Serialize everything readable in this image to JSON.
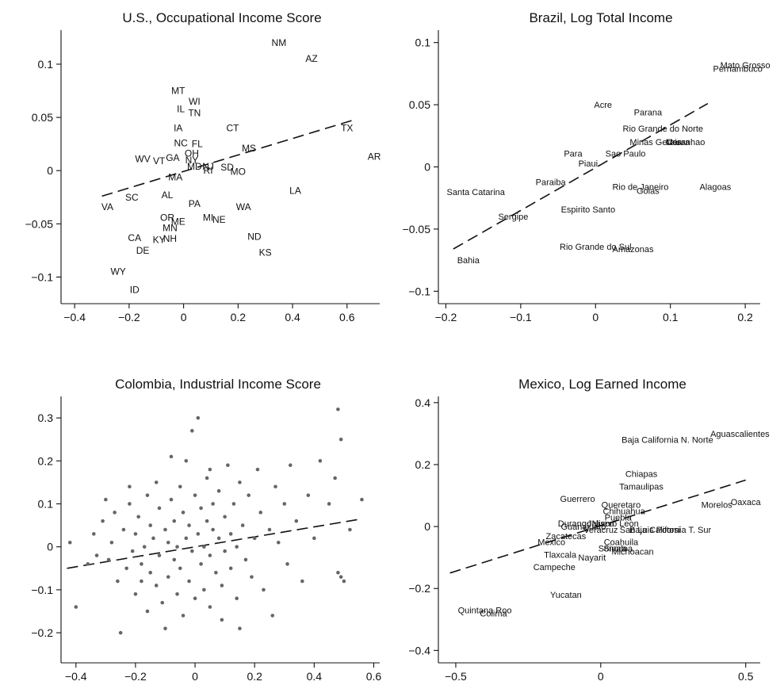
{
  "chart_data": [
    {
      "type": "scatter",
      "title": "U.S., Occupational Income Score",
      "xlim": [
        -0.45,
        0.72
      ],
      "ylim": [
        -0.125,
        0.132
      ],
      "xticks": [
        -0.4,
        -0.2,
        0,
        0.2,
        0.4,
        0.6
      ],
      "xtick_labels": [
        "−0.4",
        "−0.2",
        "0",
        "0.2",
        "0.4",
        "0.6"
      ],
      "yticks": [
        -0.1,
        -0.05,
        0,
        0.05,
        0.1
      ],
      "ytick_labels": [
        "−0.1",
        "−0.05",
        "0",
        "0.05",
        "0.1"
      ],
      "fit_line": [
        [
          -0.3,
          -0.024
        ],
        [
          0.63,
          0.048
        ]
      ],
      "points": [
        {
          "label": "NM",
          "x": 0.35,
          "y": 0.12
        },
        {
          "label": "AZ",
          "x": 0.47,
          "y": 0.105
        },
        {
          "label": "MT",
          "x": -0.02,
          "y": 0.075
        },
        {
          "label": "WI",
          "x": 0.04,
          "y": 0.065
        },
        {
          "label": "IL",
          "x": -0.01,
          "y": 0.058
        },
        {
          "label": "TN",
          "x": 0.04,
          "y": 0.054
        },
        {
          "label": "IA",
          "x": -0.02,
          "y": 0.04
        },
        {
          "label": "CT",
          "x": 0.18,
          "y": 0.04
        },
        {
          "label": "TX",
          "x": 0.6,
          "y": 0.04
        },
        {
          "label": "NC",
          "x": -0.01,
          "y": 0.026
        },
        {
          "label": "FL",
          "x": 0.05,
          "y": 0.025
        },
        {
          "label": "OH",
          "x": 0.03,
          "y": 0.016
        },
        {
          "label": "MS",
          "x": 0.24,
          "y": 0.021
        },
        {
          "label": "AR",
          "x": 0.7,
          "y": 0.013
        },
        {
          "label": "GA",
          "x": -0.04,
          "y": 0.012
        },
        {
          "label": "NY",
          "x": 0.03,
          "y": 0.01
        },
        {
          "label": "WV",
          "x": -0.15,
          "y": 0.011
        },
        {
          "label": "VT",
          "x": -0.09,
          "y": 0.009
        },
        {
          "label": "MD",
          "x": 0.04,
          "y": 0.004
        },
        {
          "label": "NJ",
          "x": 0.09,
          "y": 0.004
        },
        {
          "label": "SD",
          "x": 0.16,
          "y": 0.003
        },
        {
          "label": "RI",
          "x": 0.09,
          "y": 0.0
        },
        {
          "label": "MO",
          "x": 0.2,
          "y": -0.001
        },
        {
          "label": "MA",
          "x": -0.03,
          "y": -0.006
        },
        {
          "label": "LA",
          "x": 0.41,
          "y": -0.019
        },
        {
          "label": "AL",
          "x": -0.06,
          "y": -0.023
        },
        {
          "label": "SC",
          "x": -0.19,
          "y": -0.025
        },
        {
          "label": "VA",
          "x": -0.28,
          "y": -0.034
        },
        {
          "label": "PA",
          "x": 0.04,
          "y": -0.031
        },
        {
          "label": "WA",
          "x": 0.22,
          "y": -0.034
        },
        {
          "label": "OR",
          "x": -0.06,
          "y": -0.044
        },
        {
          "label": "ME",
          "x": -0.02,
          "y": -0.048
        },
        {
          "label": "MI",
          "x": 0.09,
          "y": -0.044
        },
        {
          "label": "NE",
          "x": 0.13,
          "y": -0.046
        },
        {
          "label": "MN",
          "x": -0.05,
          "y": -0.054
        },
        {
          "label": "CA",
          "x": -0.18,
          "y": -0.063
        },
        {
          "label": "KY",
          "x": -0.09,
          "y": -0.065
        },
        {
          "label": "NH",
          "x": -0.05,
          "y": -0.064
        },
        {
          "label": "ND",
          "x": 0.26,
          "y": -0.062
        },
        {
          "label": "DE",
          "x": -0.15,
          "y": -0.075
        },
        {
          "label": "KS",
          "x": 0.3,
          "y": -0.077
        },
        {
          "label": "WY",
          "x": -0.24,
          "y": -0.095
        },
        {
          "label": "ID",
          "x": -0.18,
          "y": -0.112
        }
      ]
    },
    {
      "type": "scatter",
      "title": "Brazil, Log Total Income",
      "xlim": [
        -0.21,
        0.22
      ],
      "ylim": [
        -0.11,
        0.11
      ],
      "xticks": [
        -0.2,
        -0.1,
        0,
        0.1,
        0.2
      ],
      "xtick_labels": [
        "−0.2",
        "−0.1",
        "0",
        "0.1",
        "0.2"
      ],
      "yticks": [
        -0.1,
        -0.05,
        0,
        0.05,
        0.1
      ],
      "ytick_labels": [
        "−0.1",
        "−0.05",
        "0",
        "0.05",
        "0.1"
      ],
      "fit_line": [
        [
          -0.19,
          -0.066
        ],
        [
          0.15,
          0.051
        ]
      ],
      "points": [
        {
          "label": "Mato Grosso",
          "x": 0.2,
          "y": 0.082
        },
        {
          "label": "Pernambuco",
          "x": 0.19,
          "y": 0.079
        },
        {
          "label": "Acre",
          "x": 0.01,
          "y": 0.05
        },
        {
          "label": "Parana",
          "x": 0.07,
          "y": 0.044
        },
        {
          "label": "Rio Grande do Norte",
          "x": 0.09,
          "y": 0.031
        },
        {
          "label": "Minas Gerais",
          "x": 0.08,
          "y": 0.02
        },
        {
          "label": "Maranhao",
          "x": 0.12,
          "y": 0.02
        },
        {
          "label": "Ceara",
          "x": 0.11,
          "y": 0.02
        },
        {
          "label": "Para",
          "x": -0.03,
          "y": 0.011
        },
        {
          "label": "Sao Paulo",
          "x": 0.04,
          "y": 0.011
        },
        {
          "label": "Piaui",
          "x": -0.01,
          "y": 0.003
        },
        {
          "label": "Paraiba",
          "x": -0.06,
          "y": -0.012
        },
        {
          "label": "Rio de Janeiro",
          "x": 0.06,
          "y": -0.016
        },
        {
          "label": "Goias",
          "x": 0.07,
          "y": -0.019
        },
        {
          "label": "Alagoas",
          "x": 0.16,
          "y": -0.016
        },
        {
          "label": "Santa Catarina",
          "x": -0.16,
          "y": -0.02
        },
        {
          "label": "Espirito Santo",
          "x": -0.01,
          "y": -0.034
        },
        {
          "label": "Sergipe",
          "x": -0.11,
          "y": -0.04
        },
        {
          "label": "Rio Grande do Sul",
          "x": 0.0,
          "y": -0.064
        },
        {
          "label": "Amazonas",
          "x": 0.05,
          "y": -0.066
        },
        {
          "label": "Bahia",
          "x": -0.17,
          "y": -0.075
        }
      ]
    },
    {
      "type": "scatter",
      "title": "Colombia, Industrial Income Score",
      "xlim": [
        -0.45,
        0.62
      ],
      "ylim": [
        -0.27,
        0.35
      ],
      "xticks": [
        -0.4,
        -0.2,
        0,
        0.2,
        0.4,
        0.6
      ],
      "xtick_labels": [
        "−0.4",
        "−0.2",
        "0",
        "0.2",
        "0.4",
        "0.6"
      ],
      "yticks": [
        -0.2,
        -0.1,
        0,
        0.1,
        0.2,
        0.3
      ],
      "ytick_labels": [
        "−0.2",
        "−0.1",
        "0",
        "0.1",
        "0.2",
        "0.3"
      ],
      "fit_line": [
        [
          -0.43,
          -0.05
        ],
        [
          0.56,
          0.065
        ]
      ],
      "points": [
        [
          -0.42,
          0.01
        ],
        [
          -0.4,
          -0.14
        ],
        [
          -0.36,
          -0.04
        ],
        [
          -0.34,
          0.03
        ],
        [
          -0.33,
          -0.02
        ],
        [
          -0.31,
          0.06
        ],
        [
          -0.29,
          -0.03
        ],
        [
          -0.28,
          0.01
        ],
        [
          -0.27,
          0.08
        ],
        [
          -0.26,
          -0.08
        ],
        [
          -0.25,
          -0.2
        ],
        [
          -0.24,
          0.04
        ],
        [
          -0.23,
          -0.05
        ],
        [
          -0.22,
          0.1
        ],
        [
          -0.21,
          -0.01
        ],
        [
          -0.2,
          0.03
        ],
        [
          -0.2,
          -0.11
        ],
        [
          -0.19,
          0.07
        ],
        [
          -0.18,
          -0.04
        ],
        [
          -0.17,
          0.0
        ],
        [
          -0.16,
          0.12
        ],
        [
          -0.16,
          -0.15
        ],
        [
          -0.15,
          0.05
        ],
        [
          -0.15,
          -0.06
        ],
        [
          -0.14,
          0.02
        ],
        [
          -0.13,
          -0.09
        ],
        [
          -0.13,
          0.15
        ],
        [
          -0.12,
          -0.02
        ],
        [
          -0.12,
          0.09
        ],
        [
          -0.11,
          -0.13
        ],
        [
          -0.1,
          0.04
        ],
        [
          -0.1,
          -0.19
        ],
        [
          -0.09,
          0.01
        ],
        [
          -0.09,
          -0.07
        ],
        [
          -0.08,
          0.21
        ],
        [
          -0.08,
          0.11
        ],
        [
          -0.07,
          -0.03
        ],
        [
          -0.07,
          0.06
        ],
        [
          -0.06,
          -0.11
        ],
        [
          -0.06,
          0.0
        ],
        [
          -0.05,
          0.14
        ],
        [
          -0.05,
          -0.05
        ],
        [
          -0.04,
          0.08
        ],
        [
          -0.04,
          -0.16
        ],
        [
          -0.03,
          0.02
        ],
        [
          -0.03,
          0.2
        ],
        [
          -0.02,
          -0.08
        ],
        [
          -0.02,
          0.05
        ],
        [
          -0.01,
          -0.01
        ],
        [
          -0.01,
          0.27
        ],
        [
          0.0,
          0.12
        ],
        [
          0.0,
          -0.12
        ],
        [
          0.01,
          0.3
        ],
        [
          0.01,
          0.03
        ],
        [
          0.02,
          -0.04
        ],
        [
          0.02,
          0.09
        ],
        [
          0.03,
          0.0
        ],
        [
          0.03,
          -0.1
        ],
        [
          0.04,
          0.16
        ],
        [
          0.04,
          0.06
        ],
        [
          0.05,
          -0.02
        ],
        [
          0.05,
          -0.14
        ],
        [
          0.06,
          0.04
        ],
        [
          0.06,
          0.1
        ],
        [
          0.07,
          -0.06
        ],
        [
          0.08,
          0.02
        ],
        [
          0.08,
          0.13
        ],
        [
          0.09,
          -0.09
        ],
        [
          0.1,
          0.07
        ],
        [
          0.1,
          -0.01
        ],
        [
          0.11,
          0.19
        ],
        [
          0.12,
          0.03
        ],
        [
          0.12,
          -0.05
        ],
        [
          0.13,
          0.1
        ],
        [
          0.14,
          -0.12
        ],
        [
          0.14,
          0.0
        ],
        [
          0.15,
          0.15
        ],
        [
          0.16,
          0.05
        ],
        [
          0.17,
          -0.03
        ],
        [
          0.18,
          0.12
        ],
        [
          0.19,
          -0.07
        ],
        [
          0.2,
          0.02
        ],
        [
          0.21,
          0.18
        ],
        [
          0.22,
          0.08
        ],
        [
          0.23,
          -0.1
        ],
        [
          0.25,
          0.04
        ],
        [
          0.26,
          -0.16
        ],
        [
          0.27,
          0.14
        ],
        [
          0.28,
          0.01
        ],
        [
          0.3,
          0.1
        ],
        [
          0.31,
          -0.04
        ],
        [
          0.32,
          0.19
        ],
        [
          0.34,
          0.06
        ],
        [
          0.36,
          -0.08
        ],
        [
          0.38,
          0.12
        ],
        [
          0.4,
          0.02
        ],
        [
          0.42,
          0.2
        ],
        [
          0.45,
          0.1
        ],
        [
          0.47,
          0.16
        ],
        [
          0.48,
          0.32
        ],
        [
          0.49,
          0.25
        ],
        [
          0.48,
          -0.06
        ],
        [
          0.49,
          -0.07
        ],
        [
          0.5,
          -0.08
        ],
        [
          0.52,
          0.04
        ],
        [
          0.56,
          0.11
        ],
        [
          -0.3,
          0.11
        ],
        [
          -0.22,
          0.14
        ],
        [
          -0.18,
          -0.08
        ],
        [
          0.05,
          0.18
        ],
        [
          0.09,
          -0.17
        ],
        [
          0.15,
          -0.19
        ]
      ]
    },
    {
      "type": "scatter",
      "title": "Mexico, Log Earned Income",
      "xlim": [
        -0.56,
        0.55
      ],
      "ylim": [
        -0.44,
        0.42
      ],
      "xticks": [
        -0.5,
        0,
        0.5
      ],
      "xtick_labels": [
        "−0.5",
        "0",
        "0.5"
      ],
      "yticks": [
        -0.4,
        -0.2,
        0,
        0.2,
        0.4
      ],
      "ytick_labels": [
        "−0.4",
        "−0.2",
        "0",
        "0.2",
        "0.4"
      ],
      "fit_line": [
        [
          -0.52,
          -0.15
        ],
        [
          0.5,
          0.15
        ]
      ],
      "points": [
        {
          "label": "Aguascalientes",
          "x": 0.48,
          "y": 0.3
        },
        {
          "label": "Baja California N. Norte",
          "x": 0.23,
          "y": 0.28
        },
        {
          "label": "Chiapas",
          "x": 0.14,
          "y": 0.17
        },
        {
          "label": "Tamaulipas",
          "x": 0.14,
          "y": 0.13
        },
        {
          "label": "Guerrero",
          "x": -0.08,
          "y": 0.09
        },
        {
          "label": "Queretaro",
          "x": 0.07,
          "y": 0.07
        },
        {
          "label": "Oaxaca",
          "x": 0.5,
          "y": 0.08
        },
        {
          "label": "Morelos",
          "x": 0.4,
          "y": 0.07
        },
        {
          "label": "Chihuahua",
          "x": 0.08,
          "y": 0.05
        },
        {
          "label": "Puebla",
          "x": 0.06,
          "y": 0.03
        },
        {
          "label": "Durango",
          "x": -0.09,
          "y": 0.01
        },
        {
          "label": "Guanajuato",
          "x": -0.06,
          "y": 0.0
        },
        {
          "label": "Jalisco",
          "x": 0.0,
          "y": 0.01
        },
        {
          "label": "Nuevo Leon",
          "x": 0.05,
          "y": 0.01
        },
        {
          "label": "Veracruz",
          "x": 0.0,
          "y": -0.01
        },
        {
          "label": "Baja California T. Sur",
          "x": 0.24,
          "y": -0.01
        },
        {
          "label": "San Luis Potosi",
          "x": 0.17,
          "y": -0.01
        },
        {
          "label": "Zacatecas",
          "x": -0.12,
          "y": -0.03
        },
        {
          "label": "Mexico",
          "x": -0.17,
          "y": -0.05
        },
        {
          "label": "Coahuila",
          "x": 0.07,
          "y": -0.05
        },
        {
          "label": "Sonora",
          "x": 0.04,
          "y": -0.07
        },
        {
          "label": "Sinaloa",
          "x": 0.06,
          "y": -0.07
        },
        {
          "label": "Michoacan",
          "x": 0.11,
          "y": -0.08
        },
        {
          "label": "Tlaxcala",
          "x": -0.14,
          "y": -0.09
        },
        {
          "label": "Nayarit",
          "x": -0.03,
          "y": -0.1
        },
        {
          "label": "Campeche",
          "x": -0.16,
          "y": -0.13
        },
        {
          "label": "Yucatan",
          "x": -0.12,
          "y": -0.22
        },
        {
          "label": "Quintana Roo",
          "x": -0.4,
          "y": -0.27
        },
        {
          "label": "Colima",
          "x": -0.37,
          "y": -0.28
        }
      ]
    }
  ]
}
